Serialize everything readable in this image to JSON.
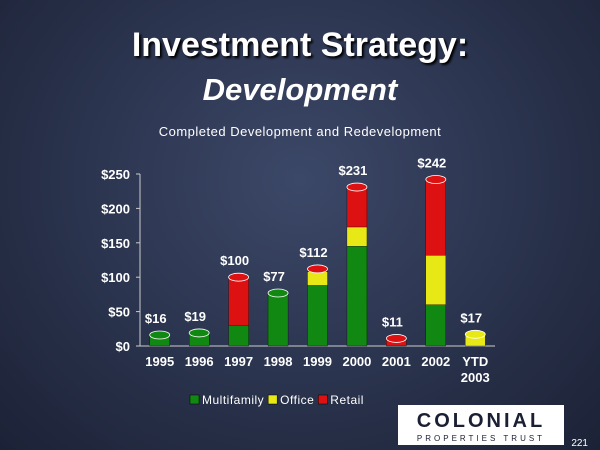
{
  "chart_data": {
    "type": "bar",
    "stacked": true,
    "title": "Investment Strategy:",
    "title_emphasis": "Development",
    "subtitle": "Completed Development and Redevelopment",
    "categories": [
      "1995",
      "1996",
      "1997",
      "1998",
      "1999",
      "2000",
      "2001",
      "2002",
      "YTD 2003"
    ],
    "series": [
      {
        "name": "Multifamily",
        "color": "#118811",
        "values": [
          16,
          19,
          30,
          77,
          88,
          145,
          0,
          60,
          0
        ]
      },
      {
        "name": "Office",
        "color": "#e8e817",
        "values": [
          0,
          0,
          0,
          0,
          20,
          28,
          0,
          72,
          17
        ]
      },
      {
        "name": "Retail",
        "color": "#dd1111",
        "values": [
          0,
          0,
          70,
          0,
          4,
          58,
          11,
          110,
          0
        ]
      }
    ],
    "total_labels": [
      "$16",
      "$19",
      "$100",
      "$77",
      "$112",
      "$231",
      "$11",
      "$242",
      "$17"
    ],
    "ylim": [
      0,
      250
    ],
    "yticks": [
      {
        "value": 0,
        "label": "$0"
      },
      {
        "value": 50,
        "label": "$50"
      },
      {
        "value": 100,
        "label": "$100"
      },
      {
        "value": 150,
        "label": "$150"
      },
      {
        "value": 200,
        "label": "$200"
      },
      {
        "value": 250,
        "label": "$250"
      }
    ],
    "legend": "bottom"
  },
  "logo_text": "COLONIAL",
  "logo_subtext": "PROPERTIES TRUST",
  "page_number": "221"
}
